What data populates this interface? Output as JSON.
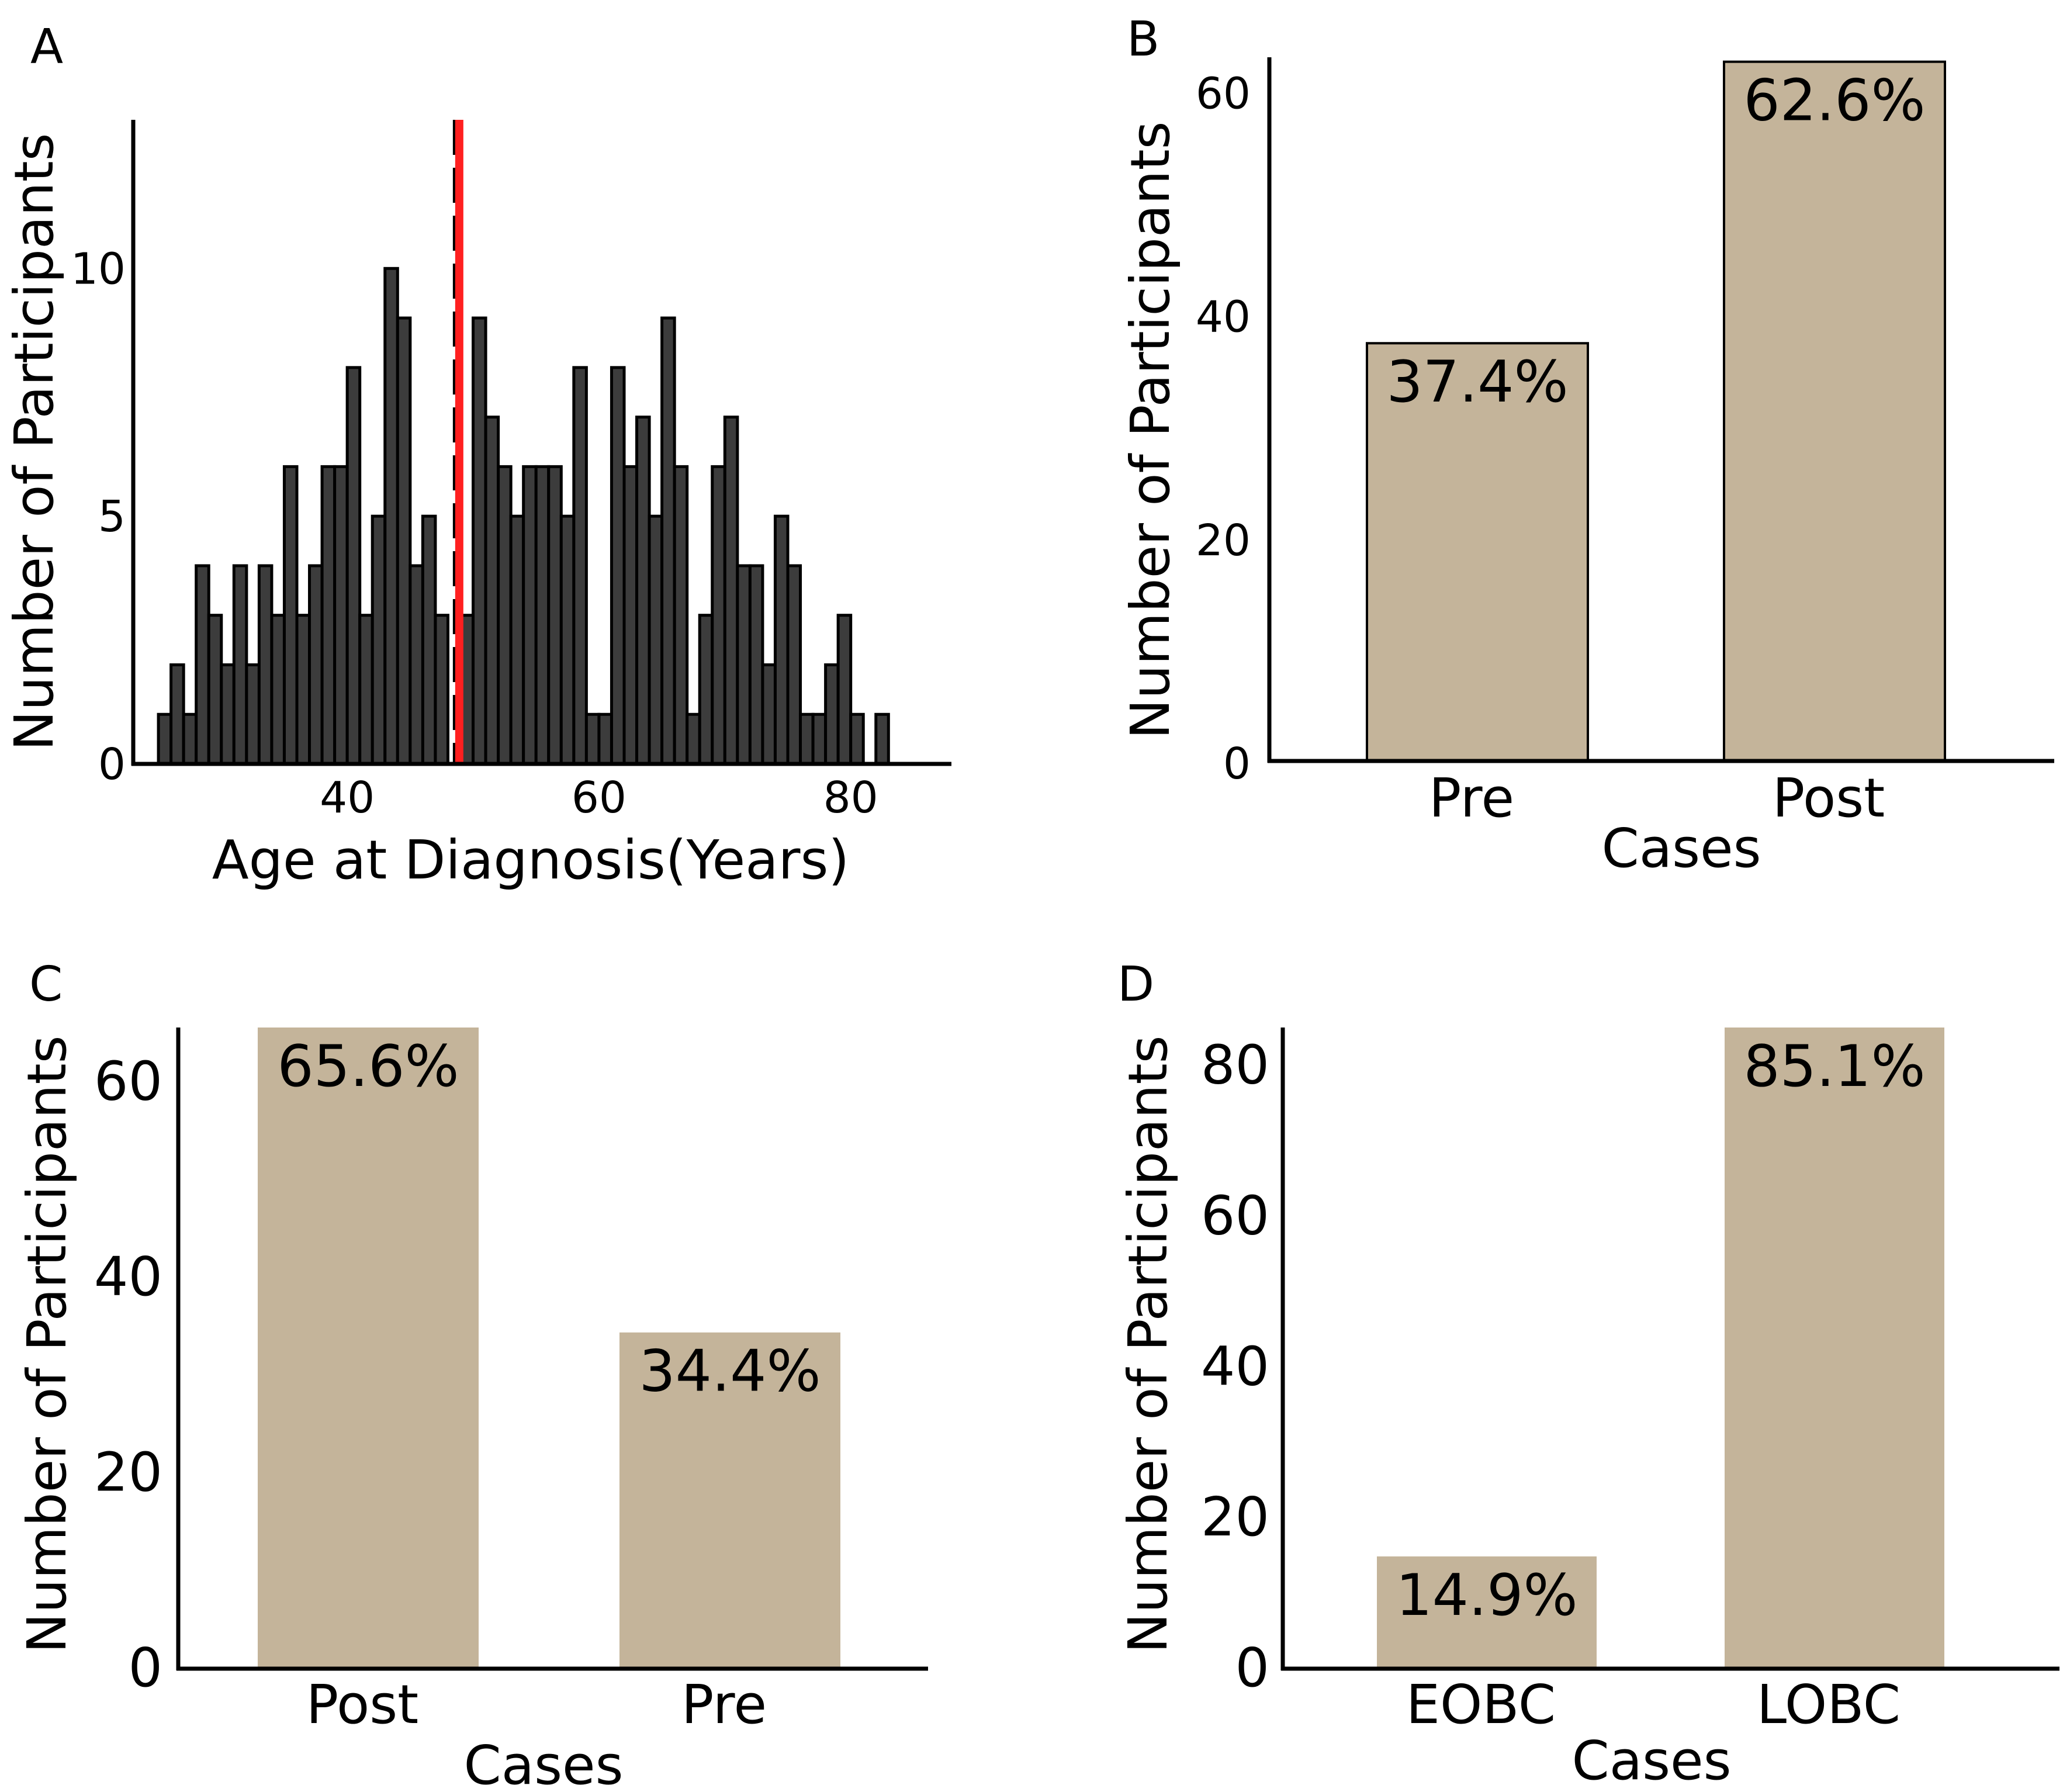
{
  "colors": {
    "bar_tan": "#c4b49a",
    "hist_bar": "#3c3c3c",
    "axis": "#000000",
    "red_line": "#ff2020"
  },
  "chart_data": [
    {
      "panel": "A",
      "type": "bar",
      "subtype": "histogram",
      "xlabel": "Age at Diagnosis(Years)",
      "ylabel": "Number of Participants",
      "xlim": [
        23,
        88
      ],
      "ylim": [
        0,
        13
      ],
      "xticks": [
        40,
        60,
        80
      ],
      "yticks": [
        0,
        5,
        10
      ],
      "bin_width": 1,
      "bins": [
        {
          "x": 25,
          "value": 1
        },
        {
          "x": 26,
          "value": 2
        },
        {
          "x": 27,
          "value": 1
        },
        {
          "x": 28,
          "value": 4
        },
        {
          "x": 29,
          "value": 3
        },
        {
          "x": 30,
          "value": 2
        },
        {
          "x": 31,
          "value": 4
        },
        {
          "x": 32,
          "value": 2
        },
        {
          "x": 33,
          "value": 4
        },
        {
          "x": 34,
          "value": 3
        },
        {
          "x": 35,
          "value": 6
        },
        {
          "x": 36,
          "value": 3
        },
        {
          "x": 37,
          "value": 4
        },
        {
          "x": 38,
          "value": 6
        },
        {
          "x": 39,
          "value": 6
        },
        {
          "x": 40,
          "value": 8
        },
        {
          "x": 41,
          "value": 3
        },
        {
          "x": 42,
          "value": 5
        },
        {
          "x": 43,
          "value": 10
        },
        {
          "x": 44,
          "value": 9
        },
        {
          "x": 45,
          "value": 4
        },
        {
          "x": 46,
          "value": 5
        },
        {
          "x": 47,
          "value": 3
        },
        {
          "x": 49,
          "value": 3
        },
        {
          "x": 50,
          "value": 9
        },
        {
          "x": 51,
          "value": 7
        },
        {
          "x": 52,
          "value": 6
        },
        {
          "x": 53,
          "value": 5
        },
        {
          "x": 54,
          "value": 6
        },
        {
          "x": 55,
          "value": 6
        },
        {
          "x": 56,
          "value": 6
        },
        {
          "x": 57,
          "value": 5
        },
        {
          "x": 58,
          "value": 8
        },
        {
          "x": 59,
          "value": 1
        },
        {
          "x": 60,
          "value": 1
        },
        {
          "x": 61,
          "value": 8
        },
        {
          "x": 62,
          "value": 6
        },
        {
          "x": 63,
          "value": 7
        },
        {
          "x": 64,
          "value": 5
        },
        {
          "x": 65,
          "value": 9
        },
        {
          "x": 66,
          "value": 6
        },
        {
          "x": 67,
          "value": 1
        },
        {
          "x": 68,
          "value": 3
        },
        {
          "x": 69,
          "value": 6
        },
        {
          "x": 70,
          "value": 7
        },
        {
          "x": 71,
          "value": 4
        },
        {
          "x": 72,
          "value": 4
        },
        {
          "x": 73,
          "value": 2
        },
        {
          "x": 74,
          "value": 5
        },
        {
          "x": 75,
          "value": 4
        },
        {
          "x": 76,
          "value": 1
        },
        {
          "x": 77,
          "value": 1
        },
        {
          "x": 78,
          "value": 2
        },
        {
          "x": 79,
          "value": 3
        },
        {
          "x": 80,
          "value": 1
        },
        {
          "x": 82,
          "value": 1
        }
      ],
      "vlines": [
        {
          "x": 48.6,
          "style": "dashed",
          "color": "#000000"
        },
        {
          "x": 48.9,
          "style": "solid",
          "color": "#ff2020"
        }
      ]
    },
    {
      "panel": "B",
      "type": "bar",
      "xlabel": "Cases",
      "ylabel": "Number of Participants",
      "categories": [
        "Pre",
        "Post"
      ],
      "values": [
        37.4,
        62.6
      ],
      "data_labels": [
        "37.4%",
        "62.6%"
      ],
      "ylim": [
        0,
        63
      ],
      "yticks": [
        0,
        20,
        40,
        60
      ],
      "bar_outline": true
    },
    {
      "panel": "C",
      "type": "bar",
      "xlabel": "Cases",
      "ylabel": "Number of Participants",
      "categories": [
        "Post",
        "Pre"
      ],
      "values": [
        65.6,
        34.4
      ],
      "data_labels": [
        "65.6%",
        "34.4%"
      ],
      "ylim": [
        0,
        65.6
      ],
      "yticks": [
        0,
        20,
        40,
        60
      ],
      "bar_outline": false
    },
    {
      "panel": "D",
      "type": "bar",
      "xlabel": "Cases",
      "ylabel": "Number of Participants",
      "categories": [
        "EOBC",
        "LOBC"
      ],
      "values": [
        14.9,
        85.1
      ],
      "data_labels": [
        "14.9%",
        "85.1%"
      ],
      "ylim": [
        0,
        85.1
      ],
      "yticks": [
        0,
        20,
        40,
        60,
        80
      ],
      "bar_outline": false
    }
  ]
}
